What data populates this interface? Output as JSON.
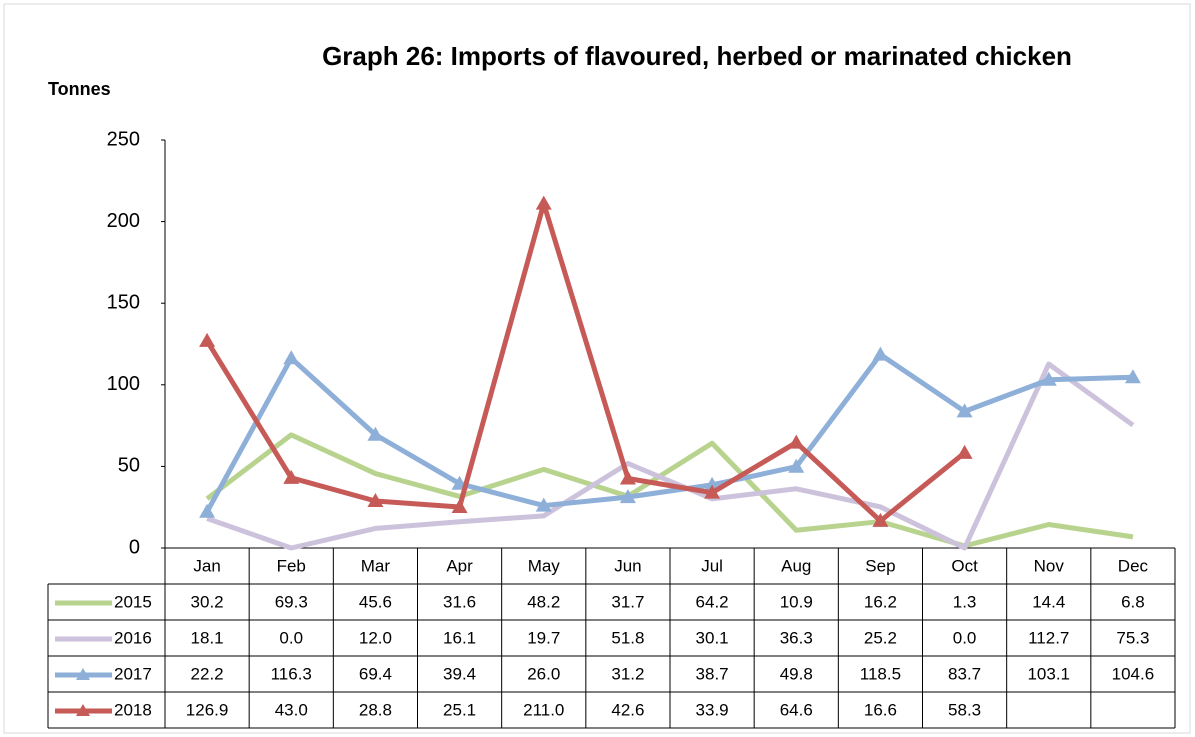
{
  "chart_data": {
    "type": "line",
    "title": "Graph 26: Imports of flavoured, herbed or marinated chicken",
    "y_label": "Tonnes",
    "categories": [
      "Jan",
      "Feb",
      "Mar",
      "Apr",
      "May",
      "Jun",
      "Jul",
      "Aug",
      "Sep",
      "Oct",
      "Nov",
      "Dec"
    ],
    "series": [
      {
        "name": "2015",
        "color": "#b8d38e",
        "marker": "none",
        "values": [
          30.2,
          69.3,
          45.6,
          31.6,
          48.2,
          31.7,
          64.2,
          10.9,
          16.2,
          1.3,
          14.4,
          6.8
        ],
        "value_labels": [
          "30.2",
          "69.3",
          "45.6",
          "31.6",
          "48.2",
          "31.7",
          "64.2",
          "10.9",
          "16.2",
          "1.3",
          "14.4",
          "6.8"
        ]
      },
      {
        "name": "2016",
        "color": "#cdc2dc",
        "marker": "none",
        "values": [
          18.1,
          0,
          12,
          16.1,
          19.7,
          51.8,
          30.1,
          36.3,
          25.2,
          0,
          112.7,
          75.3
        ],
        "value_labels": [
          "18.1",
          "0.0",
          "12.0",
          "16.1",
          "19.7",
          "51.8",
          "30.1",
          "36.3",
          "25.2",
          "0.0",
          "112.7",
          "75.3"
        ]
      },
      {
        "name": "2017",
        "color": "#8eafd8",
        "marker": "triangle",
        "values": [
          22.2,
          116.3,
          69.4,
          39.4,
          26,
          31.2,
          38.7,
          49.8,
          118.5,
          83.7,
          103.1,
          104.6
        ],
        "value_labels": [
          "22.2",
          "116.3",
          "69.4",
          "39.4",
          "26.0",
          "31.2",
          "38.7",
          "49.8",
          "118.5",
          "83.7",
          "103.1",
          "104.6"
        ]
      },
      {
        "name": "2018",
        "color": "#c65a57",
        "marker": "triangle",
        "values": [
          126.9,
          43,
          28.8,
          25.1,
          211,
          42.6,
          33.9,
          64.6,
          16.6,
          58.3,
          null,
          null
        ],
        "value_labels": [
          "126.9",
          "43.0",
          "28.8",
          "25.1",
          "211.0",
          "42.6",
          "33.9",
          "64.6",
          "16.6",
          "58.3",
          null,
          null
        ]
      }
    ],
    "ylim": [
      0,
      250
    ],
    "yticks": [
      0,
      50,
      100,
      150,
      200,
      250
    ],
    "grid": false
  }
}
